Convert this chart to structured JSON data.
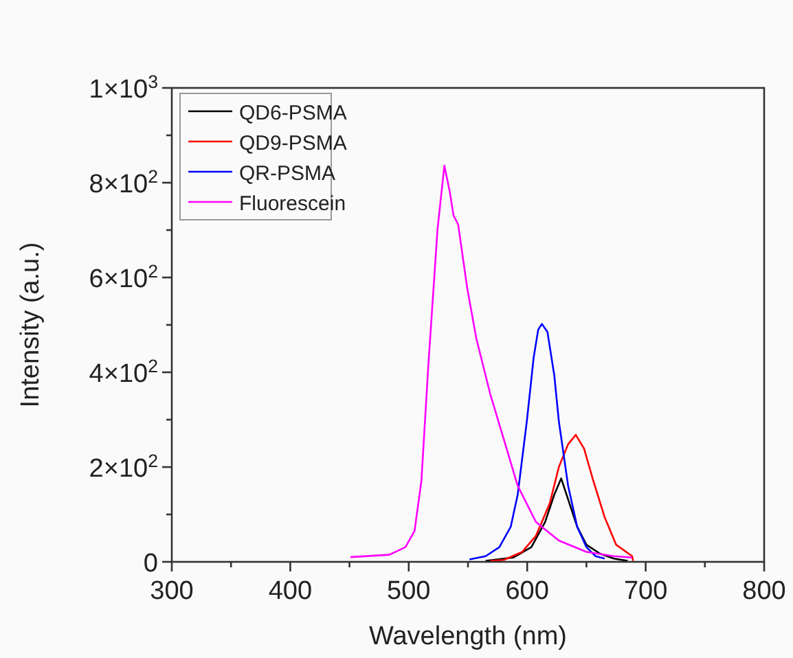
{
  "chart_data": {
    "type": "line",
    "xlabel": "Wavelength (nm)",
    "ylabel": "Intensity (a.u.)",
    "xlim": [
      300,
      800
    ],
    "ylim": [
      0,
      1000
    ],
    "xticks": [
      300,
      {
        "value": 350,
        "label": null
      },
      400,
      {
        "value": 450,
        "label": null
      },
      500,
      {
        "value": 550,
        "label": null
      },
      600,
      {
        "value": 650,
        "label": null
      },
      700,
      {
        "value": 750,
        "label": null
      },
      800
    ],
    "yticks": [
      {
        "value": 0,
        "label": "0"
      },
      {
        "value": 100,
        "label": null
      },
      {
        "value": 200,
        "label": "2×10$^{2}$"
      },
      {
        "value": 300,
        "label": null
      },
      {
        "value": 400,
        "label": "4×10$^{2}$"
      },
      {
        "value": 500,
        "label": null
      },
      {
        "value": 600,
        "label": "6×10$^{2}$"
      },
      {
        "value": 700,
        "label": null
      },
      {
        "value": 800,
        "label": "8×10$^{2}$"
      },
      {
        "value": 900,
        "label": null
      },
      {
        "value": 1000,
        "label": "1×10$^{3}$"
      }
    ],
    "grid": false,
    "legend": "top left",
    "marker": "none",
    "line_style": "solid",
    "series": [
      {
        "name": "QD6-PSMA",
        "color": "#000000",
        "x": [
          564.9,
          588.1,
          603.5,
          615.1,
          622.9,
          628.7,
          634.5,
          642.2,
          650,
          661.6,
          673.2,
          684.8
        ],
        "values": [
          2,
          9,
          31,
          84,
          142,
          176,
          132,
          74,
          36,
          17,
          7,
          2
        ]
      },
      {
        "name": "QD9-PSMA",
        "color": "#ff0000",
        "x": [
          568.7,
          580.3,
          595.8,
          607.4,
          619,
          626.7,
          634.5,
          641,
          648,
          655.8,
          665.4,
          675.1,
          688.6,
          689.4
        ],
        "values": [
          2,
          4,
          21,
          55,
          123,
          200,
          248,
          268,
          239,
          171,
          94,
          36,
          12,
          2
        ]
      },
      {
        "name": "QR-PSMA",
        "color": "#0000ff",
        "x": [
          551.3,
          564.9,
          576.5,
          586.1,
          592,
          599.7,
          605.5,
          609.3,
          612.4,
          617.1,
          622.9,
          626.7,
          634.5,
          642.2,
          650,
          657.7,
          665.4
        ],
        "values": [
          5,
          12,
          31,
          74,
          142,
          297,
          432,
          490,
          502,
          485,
          393,
          297,
          161,
          74,
          31,
          12,
          7
        ]
      },
      {
        "name": "Fluorescein",
        "color": "#ff00ff",
        "x": [
          450.8,
          483.7,
          497.2,
          504.9,
          510.7,
          516.5,
          524.3,
          530.1,
          534.7,
          537.8,
          541.7,
          549.4,
          557.1,
          568.7,
          580.3,
          591.9,
          607.4,
          626.7,
          650,
          673.2,
          688.6
        ],
        "values": [
          10,
          15,
          31,
          65,
          171,
          413,
          702,
          836,
          780,
          731,
          712,
          577,
          471,
          355,
          258,
          161,
          84,
          45,
          21,
          12,
          9
        ]
      }
    ]
  }
}
